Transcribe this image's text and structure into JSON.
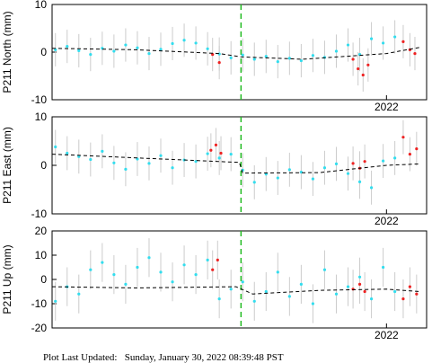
{
  "chart_data": [
    {
      "type": "scatter",
      "ylabel": "P211 North (mm)",
      "xlim": [
        2020.0,
        2022.24
      ],
      "ylim": [
        -10,
        10
      ],
      "xticks": [
        2022
      ],
      "yticks": [
        -10,
        0,
        10
      ],
      "vline": 2021.13,
      "vline_color": "#22bb22",
      "series": [
        {
          "color": "#33ddee",
          "error": 3.5,
          "x": [
            2020.02,
            2020.09,
            2020.16,
            2020.23,
            2020.3,
            2020.37,
            2020.44,
            2020.51,
            2020.58,
            2020.65,
            2020.72,
            2020.79,
            2020.86,
            2020.93,
            2021.0,
            2021.07,
            2021.14,
            2021.21,
            2021.28,
            2021.35,
            2021.42,
            2021.49,
            2021.56,
            2021.63,
            2021.7,
            2021.77,
            2021.84,
            2021.91,
            2021.98,
            2022.05
          ],
          "values": [
            0.5,
            1.2,
            0.3,
            -0.5,
            0.8,
            0.2,
            1.5,
            0.9,
            -0.3,
            0.6,
            1.8,
            2.5,
            1.9,
            0.7,
            -0.4,
            -1.2,
            -0.6,
            -1.5,
            -0.9,
            -2.0,
            -1.3,
            -1.8,
            -0.7,
            -1.1,
            0.2,
            1.5,
            -0.5,
            2.8,
            1.9,
            3.2
          ]
        },
        {
          "color": "#ee2222",
          "error": 3.5,
          "x": [
            2020.96,
            2021.0,
            2021.8,
            2021.83,
            2021.86,
            2021.89,
            2022.1,
            2022.14,
            2022.17
          ],
          "values": [
            -0.5,
            -2.2,
            -1.5,
            -3.5,
            -4.8,
            -2.7,
            2.2,
            0.5,
            -0.3
          ]
        },
        {
          "color": "#000000",
          "line": "dashed",
          "x": [
            2020.0,
            2020.5,
            2021.0,
            2021.13,
            2021.5,
            2022.0,
            2022.2
          ],
          "values": [
            0.8,
            0.5,
            -0.3,
            -1.0,
            -1.5,
            -0.3,
            1.0
          ]
        }
      ]
    },
    {
      "type": "scatter",
      "ylabel": "P211 East (mm)",
      "xlim": [
        2020.0,
        2022.24
      ],
      "ylim": [
        -10,
        10
      ],
      "xticks": [
        2022
      ],
      "yticks": [
        -10,
        0,
        10
      ],
      "vline": 2021.13,
      "vline_color": "#22bb22",
      "series": [
        {
          "color": "#33ddee",
          "error": 3.5,
          "x": [
            2020.02,
            2020.09,
            2020.16,
            2020.23,
            2020.3,
            2020.37,
            2020.44,
            2020.51,
            2020.58,
            2020.65,
            2020.72,
            2020.79,
            2020.86,
            2020.93,
            2021.0,
            2021.07,
            2021.14,
            2021.21,
            2021.28,
            2021.35,
            2021.42,
            2021.49,
            2021.56,
            2021.63,
            2021.7,
            2021.77,
            2021.84,
            2021.91,
            2021.98,
            2022.05
          ],
          "values": [
            3.8,
            2.5,
            1.8,
            1.2,
            2.9,
            0.5,
            -0.8,
            1.3,
            0.4,
            2.0,
            -0.5,
            1.1,
            0.8,
            2.4,
            1.5,
            2.3,
            -1.0,
            -3.5,
            -1.8,
            -2.6,
            -0.9,
            -1.4,
            -2.8,
            -0.5,
            0.3,
            -1.7,
            -3.4,
            -4.6,
            0.9,
            1.5
          ]
        },
        {
          "color": "#ee2222",
          "error": 3.5,
          "x": [
            2020.95,
            2020.98,
            2021.01,
            2021.8,
            2021.84,
            2021.87,
            2022.1,
            2022.14,
            2022.18
          ],
          "values": [
            3.1,
            4.2,
            2.5,
            0.4,
            -0.6,
            0.8,
            5.8,
            2.3,
            3.4
          ]
        },
        {
          "color": "#000000",
          "line": "dashed",
          "x": [
            2020.0,
            2021.12,
            2021.14,
            2021.6,
            2022.0,
            2022.2
          ],
          "values": [
            2.3,
            0.6,
            -1.6,
            -1.5,
            0.0,
            0.3
          ]
        }
      ]
    },
    {
      "type": "scatter",
      "ylabel": "P211 Up (mm)",
      "xlim": [
        2020.0,
        2022.24
      ],
      "ylim": [
        -20,
        20
      ],
      "xticks": [
        2022
      ],
      "yticks": [
        -20,
        -10,
        0,
        10,
        20
      ],
      "vline": 2021.13,
      "vline_color": "#22bb22",
      "series": [
        {
          "color": "#33ddee",
          "error": 8,
          "x": [
            2020.02,
            2020.09,
            2020.16,
            2020.23,
            2020.3,
            2020.37,
            2020.44,
            2020.51,
            2020.58,
            2020.65,
            2020.72,
            2020.79,
            2020.86,
            2020.93,
            2021.0,
            2021.07,
            2021.14,
            2021.21,
            2021.28,
            2021.35,
            2021.42,
            2021.49,
            2021.56,
            2021.63,
            2021.7,
            2021.77,
            2021.84,
            2021.91,
            2021.98,
            2022.05
          ],
          "values": [
            -9,
            -3,
            -6,
            4,
            7,
            2,
            -2,
            5,
            9,
            3,
            -1,
            6,
            2,
            8,
            -8,
            -4,
            -1,
            -9,
            -5,
            3,
            -7,
            -2,
            -10,
            4,
            -6,
            -3,
            1,
            -8,
            5,
            -5
          ]
        },
        {
          "color": "#ee2222",
          "error": 8,
          "x": [
            2020.96,
            2020.99,
            2021.8,
            2021.84,
            2021.87,
            2022.1,
            2022.14,
            2022.18
          ],
          "values": [
            4,
            8,
            -4,
            -2,
            -5,
            -8,
            -3,
            -6
          ]
        },
        {
          "color": "#000000",
          "line": "dashed",
          "x": [
            2020.0,
            2020.5,
            2021.1,
            2021.2,
            2021.6,
            2022.0,
            2022.2
          ],
          "values": [
            -3,
            -3.5,
            -3,
            -6,
            -4.5,
            -4,
            -5
          ]
        }
      ]
    }
  ],
  "footer": "Plot Last Updated:   Sunday, January 30, 2022 08:39:48 PST"
}
